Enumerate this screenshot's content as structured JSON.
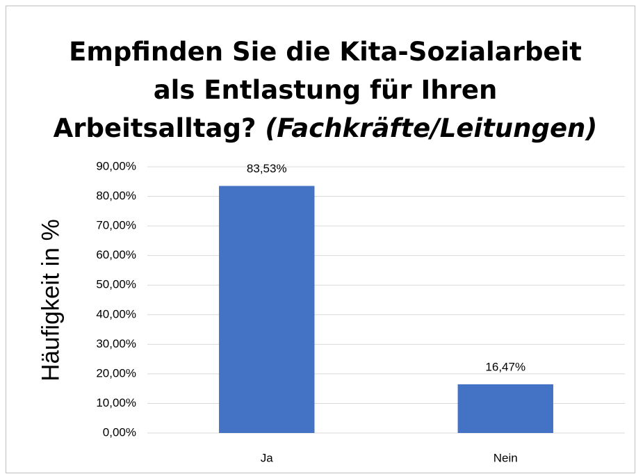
{
  "chart_data": {
    "type": "bar",
    "title": [
      "Empfinden Sie die Kita-Sozialarbeit",
      "als Entlastung für Ihren",
      "Arbeitsalltag?"
    ],
    "subtitle": "(Fachkräfte/Leitungen)",
    "ylabel": "Häufigkeit in %",
    "categories": [
      "Ja",
      "Nein"
    ],
    "values": [
      83.53,
      16.47
    ],
    "value_labels": [
      "83,53%",
      "16,47%"
    ],
    "color": "#4472c4",
    "ylim": [
      0,
      90
    ],
    "yticks": [
      {
        "value": 0,
        "label": "0,00%"
      },
      {
        "value": 10,
        "label": "10,00%"
      },
      {
        "value": 20,
        "label": "20,00%"
      },
      {
        "value": 30,
        "label": "30,00%"
      },
      {
        "value": 40,
        "label": "40,00%"
      },
      {
        "value": 50,
        "label": "50,00%"
      },
      {
        "value": 60,
        "label": "60,00%"
      },
      {
        "value": 70,
        "label": "70,00%"
      },
      {
        "value": 80,
        "label": "80,00%"
      },
      {
        "value": 90,
        "label": "90,00%"
      }
    ],
    "grid": true
  }
}
